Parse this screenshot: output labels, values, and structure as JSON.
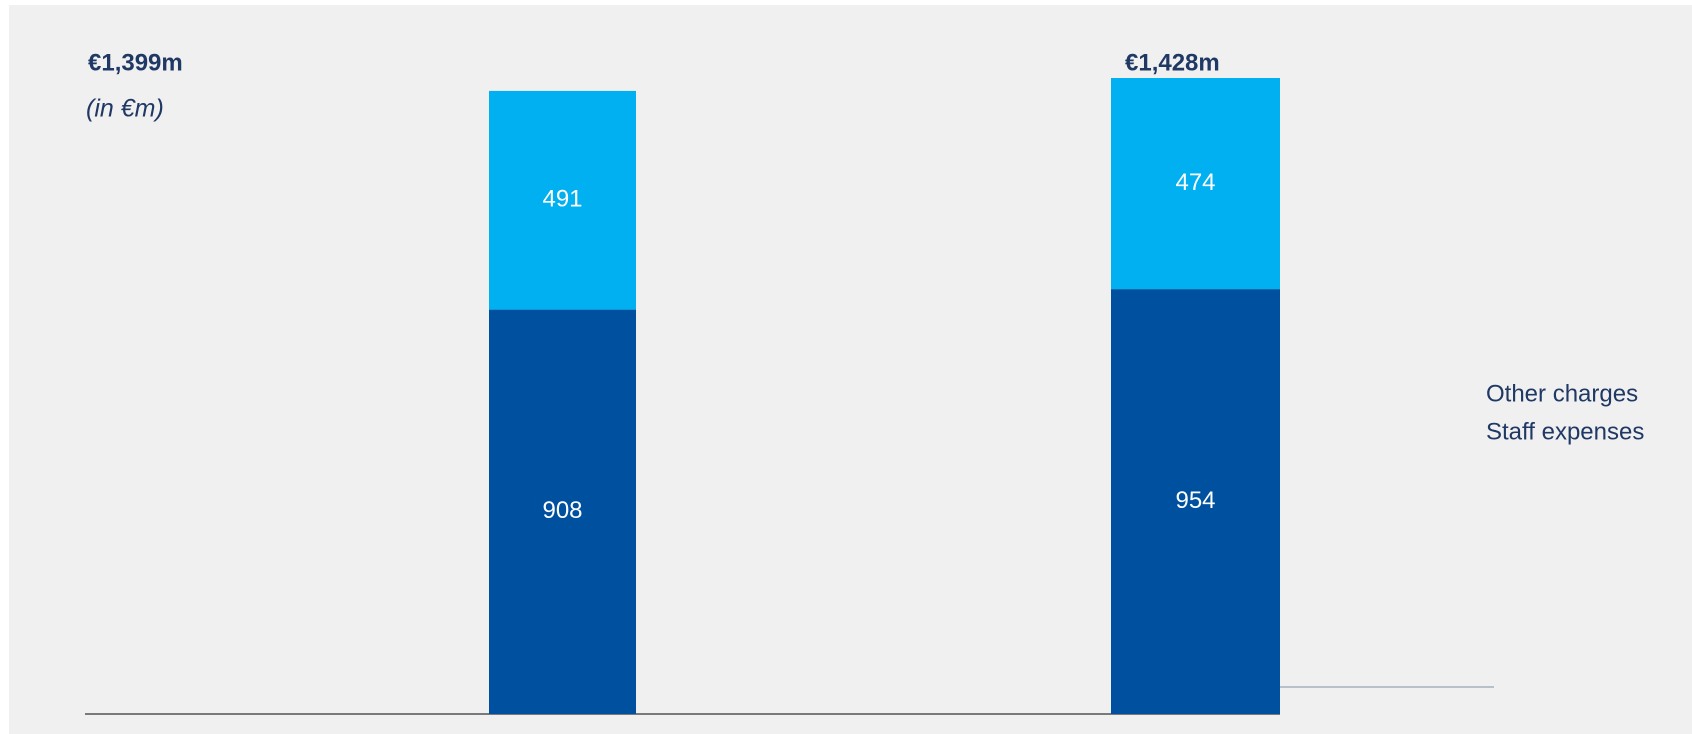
{
  "chart_data": {
    "type": "stacked_bar",
    "subtitle": "(in €m)",
    "categories": [
      null,
      null
    ],
    "series": [
      {
        "name": "Other charges",
        "color": "#00b0f0",
        "values": [
          491,
          474
        ]
      },
      {
        "name": "Staff expenses",
        "color": "#0050a0",
        "values": [
          908,
          954
        ]
      }
    ],
    "totals": {
      "values": [
        1399,
        1428
      ],
      "value_labels": [
        "€1,399m",
        "€1,428m"
      ]
    },
    "legend": "right"
  }
}
